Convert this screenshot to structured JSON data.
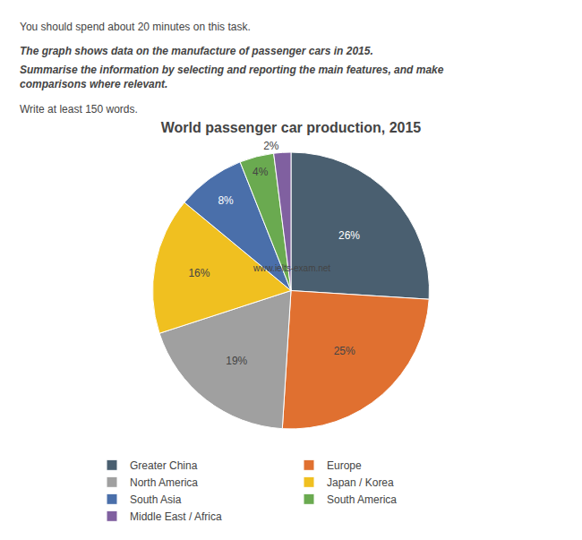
{
  "chart_data": {
    "type": "pie",
    "title": "World passenger car production, 2015",
    "categories": [
      "Greater China",
      "Europe",
      "North America",
      "Japan / Korea",
      "South Asia",
      "South America",
      "Middle East / Africa"
    ],
    "values": [
      26,
      25,
      19,
      16,
      8,
      4,
      2
    ],
    "value_labels": [
      "26%",
      "25%",
      "19%",
      "16%",
      "8%",
      "4%",
      "2%"
    ],
    "colors": [
      "#4a5f70",
      "#e07030",
      "#a0a0a0",
      "#f0c020",
      "#4a6faa",
      "#6aaa50",
      "#8060a0"
    ],
    "data_labels": true,
    "legend": "bottom",
    "annotations": [
      "You should spend about 20 minutes on this task.",
      "The graph shows data on the manufacture of passenger cars in 2015.",
      "Summarise the information by selecting and reporting the main features, and make\ncomparisons where relevant.",
      "Write at least 150 words.",
      "www.ielts-exam.net"
    ]
  }
}
